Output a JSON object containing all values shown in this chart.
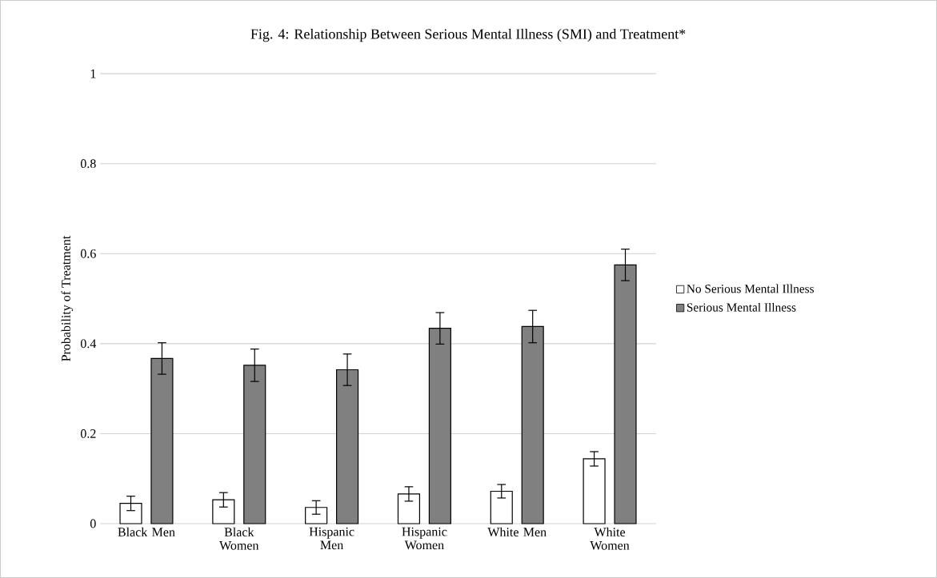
{
  "chart_data": {
    "type": "bar",
    "title": "Fig. 4: Relationship Between Serious Mental Illness (SMI) and Treatment*",
    "ylabel": "Probability of Treatment",
    "categories": [
      "Black Men",
      "Black Women",
      "Hispanic Men",
      "Hispanic Women",
      "White Men",
      "White Women"
    ],
    "series": [
      {
        "name": "No Serious Mental Illness",
        "color": "#ffffff",
        "values": [
          0.045,
          0.053,
          0.036,
          0.066,
          0.072,
          0.144
        ],
        "errors": [
          0.016,
          0.016,
          0.015,
          0.016,
          0.015,
          0.016
        ]
      },
      {
        "name": "Serious Mental Illness",
        "color": "#808080",
        "values": [
          0.367,
          0.352,
          0.342,
          0.434,
          0.438,
          0.575
        ],
        "errors": [
          0.035,
          0.036,
          0.035,
          0.035,
          0.036,
          0.035
        ]
      }
    ],
    "ylim": [
      0,
      1
    ],
    "yticks": [
      0,
      0.2,
      0.4,
      0.6,
      0.8,
      1
    ],
    "grid": "y",
    "legend": "right"
  }
}
